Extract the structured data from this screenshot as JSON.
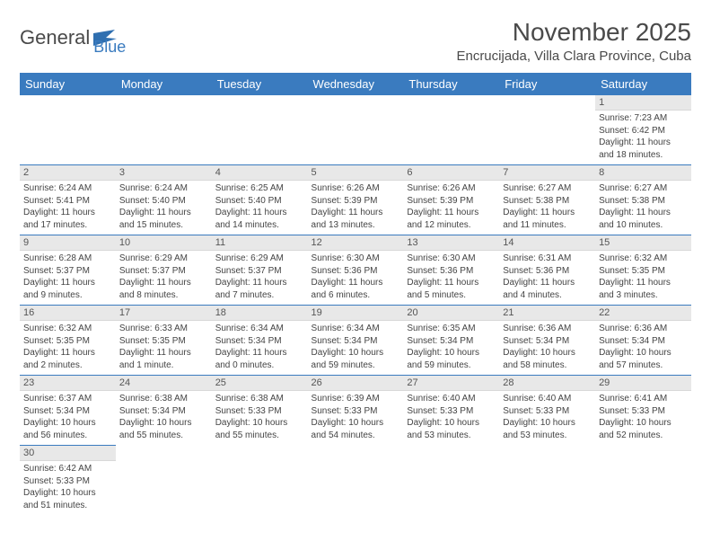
{
  "logo": {
    "text_a": "General",
    "text_b": "Blue",
    "icon_color": "#2f6fb0"
  },
  "title": "November 2025",
  "location": "Encrucijada, Villa Clara Province, Cuba",
  "colors": {
    "header_bg": "#3a7bbf",
    "header_text": "#ffffff",
    "daynum_bg": "#e8e8e8",
    "cell_border": "#3a7bbf",
    "body_text": "#444444"
  },
  "weekdays": [
    "Sunday",
    "Monday",
    "Tuesday",
    "Wednesday",
    "Thursday",
    "Friday",
    "Saturday"
  ],
  "weeks": [
    [
      null,
      null,
      null,
      null,
      null,
      null,
      {
        "n": "1",
        "sunrise": "7:23 AM",
        "sunset": "6:42 PM",
        "daylight": "11 hours and 18 minutes."
      }
    ],
    [
      {
        "n": "2",
        "sunrise": "6:24 AM",
        "sunset": "5:41 PM",
        "daylight": "11 hours and 17 minutes."
      },
      {
        "n": "3",
        "sunrise": "6:24 AM",
        "sunset": "5:40 PM",
        "daylight": "11 hours and 15 minutes."
      },
      {
        "n": "4",
        "sunrise": "6:25 AM",
        "sunset": "5:40 PM",
        "daylight": "11 hours and 14 minutes."
      },
      {
        "n": "5",
        "sunrise": "6:26 AM",
        "sunset": "5:39 PM",
        "daylight": "11 hours and 13 minutes."
      },
      {
        "n": "6",
        "sunrise": "6:26 AM",
        "sunset": "5:39 PM",
        "daylight": "11 hours and 12 minutes."
      },
      {
        "n": "7",
        "sunrise": "6:27 AM",
        "sunset": "5:38 PM",
        "daylight": "11 hours and 11 minutes."
      },
      {
        "n": "8",
        "sunrise": "6:27 AM",
        "sunset": "5:38 PM",
        "daylight": "11 hours and 10 minutes."
      }
    ],
    [
      {
        "n": "9",
        "sunrise": "6:28 AM",
        "sunset": "5:37 PM",
        "daylight": "11 hours and 9 minutes."
      },
      {
        "n": "10",
        "sunrise": "6:29 AM",
        "sunset": "5:37 PM",
        "daylight": "11 hours and 8 minutes."
      },
      {
        "n": "11",
        "sunrise": "6:29 AM",
        "sunset": "5:37 PM",
        "daylight": "11 hours and 7 minutes."
      },
      {
        "n": "12",
        "sunrise": "6:30 AM",
        "sunset": "5:36 PM",
        "daylight": "11 hours and 6 minutes."
      },
      {
        "n": "13",
        "sunrise": "6:30 AM",
        "sunset": "5:36 PM",
        "daylight": "11 hours and 5 minutes."
      },
      {
        "n": "14",
        "sunrise": "6:31 AM",
        "sunset": "5:36 PM",
        "daylight": "11 hours and 4 minutes."
      },
      {
        "n": "15",
        "sunrise": "6:32 AM",
        "sunset": "5:35 PM",
        "daylight": "11 hours and 3 minutes."
      }
    ],
    [
      {
        "n": "16",
        "sunrise": "6:32 AM",
        "sunset": "5:35 PM",
        "daylight": "11 hours and 2 minutes."
      },
      {
        "n": "17",
        "sunrise": "6:33 AM",
        "sunset": "5:35 PM",
        "daylight": "11 hours and 1 minute."
      },
      {
        "n": "18",
        "sunrise": "6:34 AM",
        "sunset": "5:34 PM",
        "daylight": "11 hours and 0 minutes."
      },
      {
        "n": "19",
        "sunrise": "6:34 AM",
        "sunset": "5:34 PM",
        "daylight": "10 hours and 59 minutes."
      },
      {
        "n": "20",
        "sunrise": "6:35 AM",
        "sunset": "5:34 PM",
        "daylight": "10 hours and 59 minutes."
      },
      {
        "n": "21",
        "sunrise": "6:36 AM",
        "sunset": "5:34 PM",
        "daylight": "10 hours and 58 minutes."
      },
      {
        "n": "22",
        "sunrise": "6:36 AM",
        "sunset": "5:34 PM",
        "daylight": "10 hours and 57 minutes."
      }
    ],
    [
      {
        "n": "23",
        "sunrise": "6:37 AM",
        "sunset": "5:34 PM",
        "daylight": "10 hours and 56 minutes."
      },
      {
        "n": "24",
        "sunrise": "6:38 AM",
        "sunset": "5:34 PM",
        "daylight": "10 hours and 55 minutes."
      },
      {
        "n": "25",
        "sunrise": "6:38 AM",
        "sunset": "5:33 PM",
        "daylight": "10 hours and 55 minutes."
      },
      {
        "n": "26",
        "sunrise": "6:39 AM",
        "sunset": "5:33 PM",
        "daylight": "10 hours and 54 minutes."
      },
      {
        "n": "27",
        "sunrise": "6:40 AM",
        "sunset": "5:33 PM",
        "daylight": "10 hours and 53 minutes."
      },
      {
        "n": "28",
        "sunrise": "6:40 AM",
        "sunset": "5:33 PM",
        "daylight": "10 hours and 53 minutes."
      },
      {
        "n": "29",
        "sunrise": "6:41 AM",
        "sunset": "5:33 PM",
        "daylight": "10 hours and 52 minutes."
      }
    ],
    [
      {
        "n": "30",
        "sunrise": "6:42 AM",
        "sunset": "5:33 PM",
        "daylight": "10 hours and 51 minutes."
      },
      null,
      null,
      null,
      null,
      null,
      null
    ]
  ],
  "labels": {
    "sunrise": "Sunrise: ",
    "sunset": "Sunset: ",
    "daylight": "Daylight: "
  }
}
